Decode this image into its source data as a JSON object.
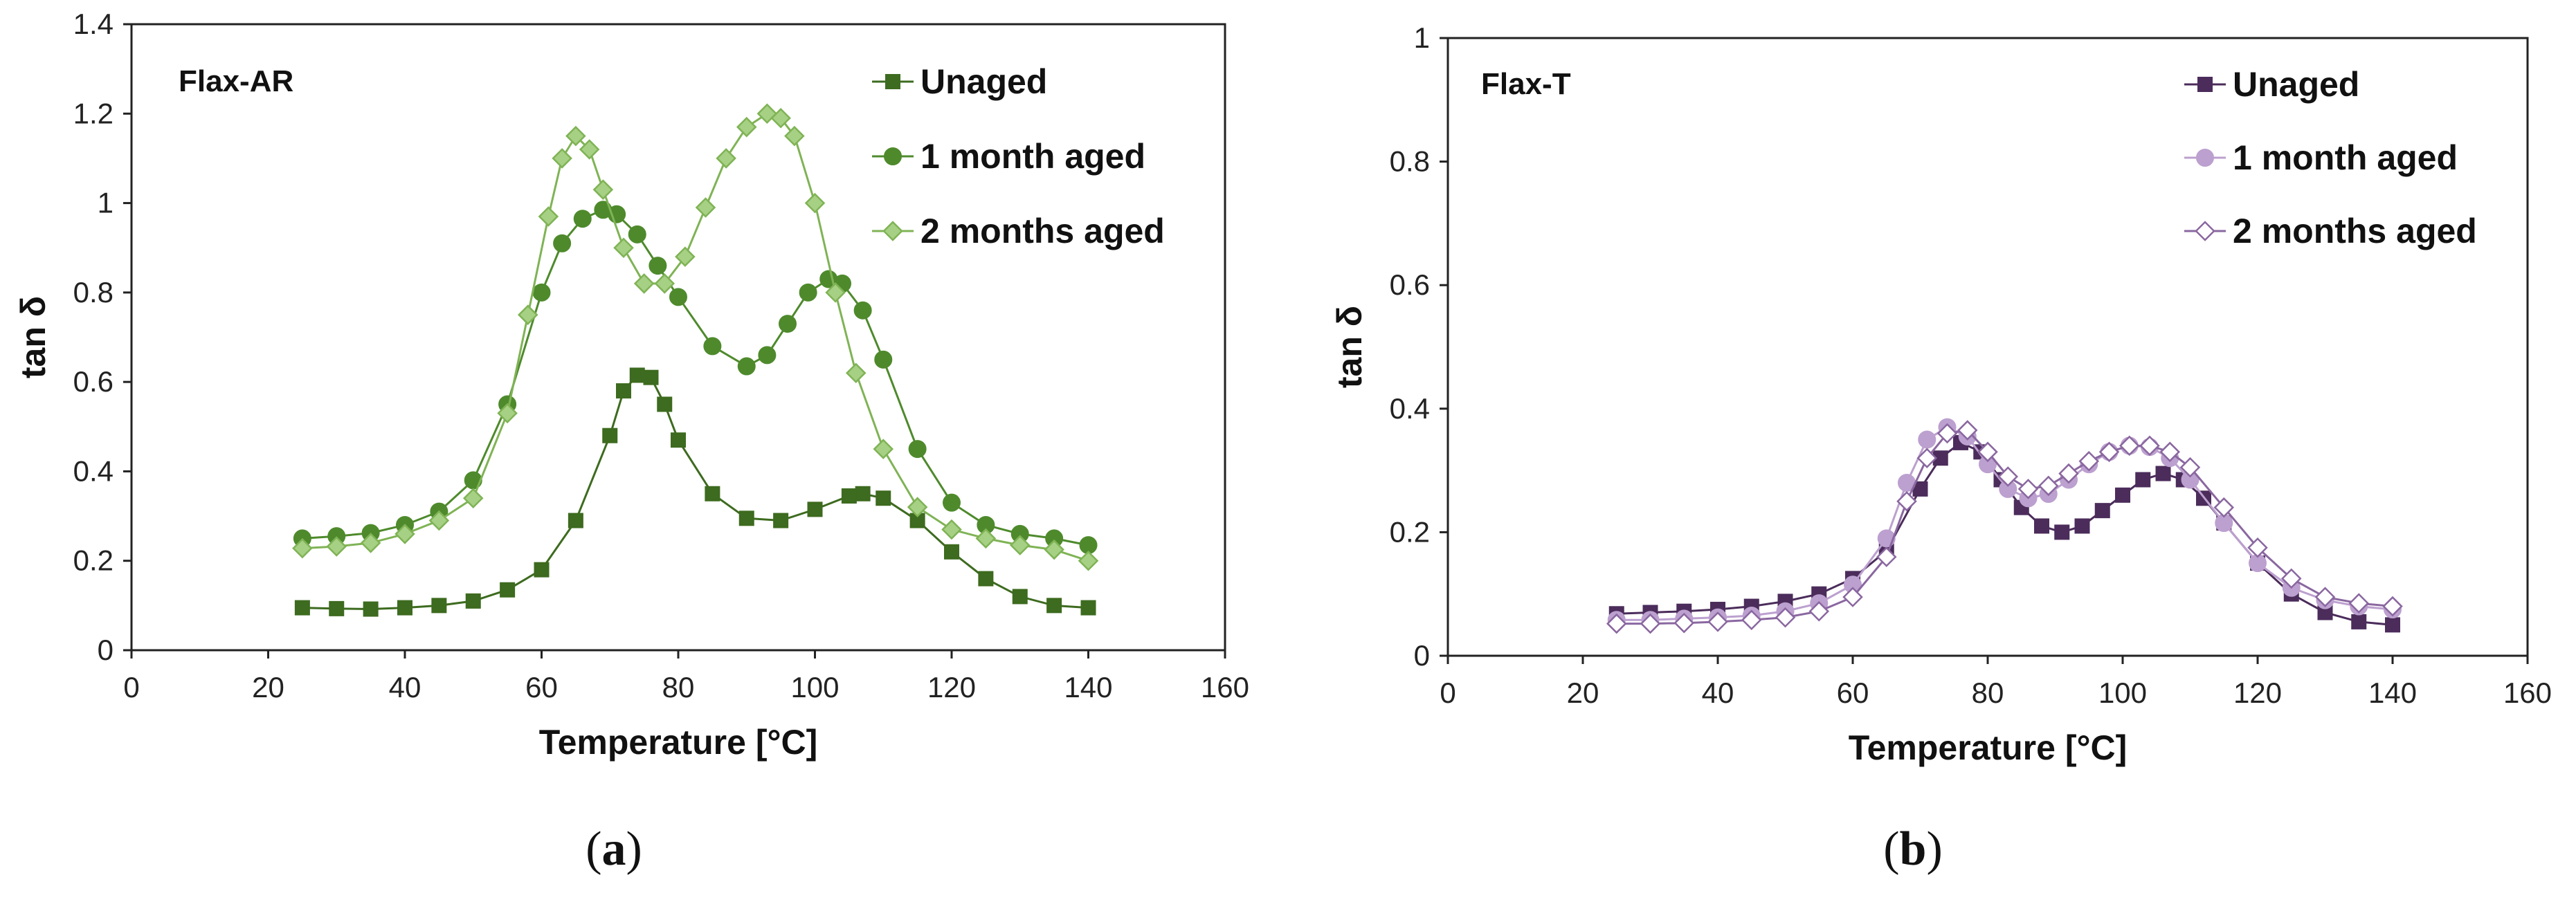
{
  "colors": {
    "flax_ar": {
      "unaged": "#3d6b1f",
      "month1": "#4e8a2c",
      "month2": "#a6d083",
      "month2_edge": "#7fb355"
    },
    "flax_t": {
      "unaged": "#4b2c5b",
      "month1": "#bca0cf",
      "month2": "#ffffff",
      "month2_edge": "#8a67a0"
    }
  },
  "chart_data": [
    {
      "type": "scatter",
      "panel_label": "Flax-AR",
      "caption_letter": "a",
      "xlabel": "Temperature [°C]",
      "ylabel": "tan δ",
      "xlim": [
        0,
        160
      ],
      "ylim": [
        0,
        1.4
      ],
      "xticks": [
        "0",
        "20",
        "40",
        "60",
        "80",
        "100",
        "120",
        "140",
        "160"
      ],
      "yticks": [
        "0",
        "0.2",
        "0.4",
        "0.6",
        "0.8",
        "1",
        "1.2",
        "1.4"
      ],
      "grid": false,
      "legend_position": "top-right",
      "series": [
        {
          "name": "Unaged",
          "marker": "square",
          "x": [
            25,
            30,
            35,
            40,
            45,
            50,
            55,
            60,
            65,
            70,
            72,
            74,
            76,
            78,
            80,
            85,
            90,
            95,
            100,
            105,
            107,
            110,
            115,
            120,
            125,
            130,
            135,
            140
          ],
          "y": [
            0.095,
            0.093,
            0.092,
            0.095,
            0.1,
            0.11,
            0.135,
            0.18,
            0.29,
            0.48,
            0.58,
            0.615,
            0.61,
            0.55,
            0.47,
            0.35,
            0.295,
            0.29,
            0.315,
            0.345,
            0.35,
            0.34,
            0.29,
            0.22,
            0.16,
            0.12,
            0.1,
            0.095
          ]
        },
        {
          "name": "1 month aged",
          "marker": "circle",
          "x": [
            25,
            30,
            35,
            40,
            45,
            50,
            55,
            60,
            63,
            66,
            69,
            71,
            74,
            77,
            80,
            85,
            90,
            93,
            96,
            99,
            102,
            104,
            107,
            110,
            115,
            120,
            125,
            130,
            135,
            140
          ],
          "y": [
            0.25,
            0.255,
            0.262,
            0.28,
            0.31,
            0.38,
            0.55,
            0.8,
            0.91,
            0.965,
            0.985,
            0.975,
            0.93,
            0.86,
            0.79,
            0.68,
            0.635,
            0.66,
            0.73,
            0.8,
            0.83,
            0.82,
            0.76,
            0.65,
            0.45,
            0.33,
            0.28,
            0.26,
            0.25,
            0.235
          ]
        },
        {
          "name": "2 months aged",
          "marker": "diamond",
          "x": [
            25,
            30,
            35,
            40,
            45,
            50,
            55,
            58,
            61,
            63,
            65,
            67,
            69,
            72,
            75,
            78,
            81,
            84,
            87,
            90,
            93,
            95,
            97,
            100,
            103,
            106,
            110,
            115,
            120,
            125,
            130,
            135,
            140
          ],
          "y": [
            0.228,
            0.232,
            0.24,
            0.26,
            0.29,
            0.34,
            0.53,
            0.75,
            0.97,
            1.1,
            1.15,
            1.12,
            1.03,
            0.9,
            0.82,
            0.82,
            0.88,
            0.99,
            1.1,
            1.17,
            1.2,
            1.19,
            1.15,
            1.0,
            0.8,
            0.62,
            0.45,
            0.32,
            0.27,
            0.25,
            0.235,
            0.225,
            0.2
          ]
        }
      ]
    },
    {
      "type": "scatter",
      "panel_label": "Flax-T",
      "caption_letter": "b",
      "xlabel": "Temperature [°C]",
      "ylabel": "tan δ",
      "xlim": [
        0,
        160
      ],
      "ylim": [
        0,
        1
      ],
      "xticks": [
        "0",
        "20",
        "40",
        "60",
        "80",
        "100",
        "120",
        "140",
        "160"
      ],
      "yticks": [
        "0",
        "0.2",
        "0.4",
        "0.6",
        "0.8",
        "1"
      ],
      "grid": false,
      "legend_position": "top-right",
      "series": [
        {
          "name": "Unaged",
          "marker": "square",
          "x": [
            25,
            30,
            35,
            40,
            45,
            50,
            55,
            60,
            65,
            70,
            73,
            76,
            79,
            82,
            85,
            88,
            91,
            94,
            97,
            100,
            103,
            106,
            109,
            112,
            115,
            120,
            125,
            130,
            135,
            140
          ],
          "y": [
            0.068,
            0.07,
            0.072,
            0.075,
            0.08,
            0.088,
            0.1,
            0.125,
            0.17,
            0.27,
            0.32,
            0.345,
            0.33,
            0.285,
            0.24,
            0.21,
            0.2,
            0.21,
            0.235,
            0.26,
            0.285,
            0.295,
            0.285,
            0.255,
            0.215,
            0.15,
            0.1,
            0.07,
            0.055,
            0.05
          ]
        },
        {
          "name": "1 month aged",
          "marker": "circle",
          "x": [
            25,
            30,
            35,
            40,
            45,
            50,
            55,
            60,
            65,
            68,
            71,
            74,
            77,
            80,
            83,
            86,
            89,
            92,
            95,
            98,
            101,
            104,
            107,
            110,
            115,
            120,
            125,
            130,
            135,
            140
          ],
          "y": [
            0.058,
            0.058,
            0.06,
            0.062,
            0.065,
            0.072,
            0.085,
            0.115,
            0.19,
            0.28,
            0.35,
            0.37,
            0.355,
            0.31,
            0.27,
            0.255,
            0.262,
            0.285,
            0.31,
            0.33,
            0.34,
            0.338,
            0.32,
            0.285,
            0.215,
            0.15,
            0.11,
            0.09,
            0.08,
            0.075
          ]
        },
        {
          "name": "2 months aged",
          "marker": "diamond",
          "x": [
            25,
            30,
            35,
            40,
            45,
            50,
            55,
            60,
            65,
            68,
            71,
            74,
            77,
            80,
            83,
            86,
            89,
            92,
            95,
            98,
            101,
            104,
            107,
            110,
            115,
            120,
            125,
            130,
            135,
            140
          ],
          "y": [
            0.052,
            0.052,
            0.053,
            0.055,
            0.058,
            0.062,
            0.072,
            0.095,
            0.16,
            0.25,
            0.32,
            0.36,
            0.365,
            0.33,
            0.29,
            0.27,
            0.275,
            0.295,
            0.315,
            0.33,
            0.34,
            0.34,
            0.33,
            0.305,
            0.24,
            0.175,
            0.125,
            0.095,
            0.085,
            0.08
          ]
        }
      ]
    }
  ]
}
